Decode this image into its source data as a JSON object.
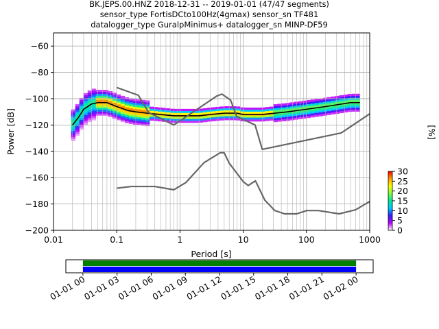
{
  "title_lines": [
    "BK.JEPS.00.HNZ   2018-12-31 -- 2019-01-01  (47/47 segments)",
    "sensor_type FortisDCto100Hz(4gmax) sensor_sn TF481",
    "datalogger_type GuralpMinimus+ datalogger_sn MINP-DF59"
  ],
  "chart_data": [
    {
      "type": "heatmap",
      "xlabel": "Period [s]",
      "ylabel": "Power [dB]",
      "x_scale": "log",
      "xlim": [
        0.01,
        1000
      ],
      "ylim": [
        -200,
        -50
      ],
      "x_ticks": [
        0.01,
        0.1,
        1,
        10,
        100,
        1000
      ],
      "x_tick_labels": [
        "0.01",
        "0.1",
        "1",
        "10",
        "100",
        "1000"
      ],
      "y_ticks": [
        -200,
        -180,
        -160,
        -140,
        -120,
        -100,
        -80,
        -60
      ],
      "y_tick_labels": [
        "−200",
        "−180",
        "−160",
        "−140",
        "−120",
        "−100",
        "−80",
        "−60"
      ],
      "grid": true,
      "colorbar": {
        "label": "[%]",
        "range": [
          0,
          30
        ],
        "ticks": [
          0,
          5,
          10,
          15,
          20,
          25,
          30
        ],
        "tick_labels": [
          "0",
          "5",
          "10",
          "15",
          "20",
          "25",
          "30"
        ],
        "colormap": [
          "#ffffff",
          "#c000ff",
          "#3020ff",
          "#00c8ff",
          "#00e8a0",
          "#80ff40",
          "#ffff00",
          "#ffa000",
          "#ff0000"
        ]
      },
      "colors": {
        "mode_line": "#000000",
        "noise_models": "#666666",
        "axes": "#000000",
        "grid": "#b0b0b0"
      },
      "series": [
        {
          "name": "",
          "role": "mode",
          "x": [
            0.02,
            0.025,
            0.03,
            0.04,
            0.05,
            0.07,
            0.1,
            0.15,
            0.2,
            0.3,
            0.5,
            0.8,
            1,
            2,
            3,
            5,
            8,
            10,
            20,
            50,
            100,
            200,
            500,
            700
          ],
          "y": [
            -120,
            -114,
            -108,
            -104,
            -103,
            -103,
            -106,
            -109,
            -110,
            -111,
            -112,
            -113,
            -113,
            -113,
            -112,
            -111,
            -111,
            -112,
            -112,
            -110,
            -108,
            -106,
            -103,
            -103
          ]
        },
        {
          "name": "",
          "role": "noise-model-high",
          "x": [
            0.1,
            0.22,
            0.32,
            0.8,
            3.8,
            4.6,
            6.3,
            7.9,
            15.4,
            20,
            354.8,
            1000
          ],
          "y": [
            -91.5,
            -97.4,
            -110.5,
            -120,
            -98,
            -96.5,
            -101,
            -113.5,
            -120,
            -138.5,
            -126,
            -111.5
          ]
        },
        {
          "name": "",
          "role": "noise-model-low",
          "x": [
            0.1,
            0.17,
            0.4,
            0.8,
            1.24,
            2.4,
            4.3,
            5,
            6,
            10,
            12,
            15.6,
            21.9,
            31.6,
            45,
            70,
            101,
            154,
            328,
            600,
            1000
          ],
          "y": [
            -168,
            -166.7,
            -166.7,
            -169.2,
            -163.7,
            -148.6,
            -141.1,
            -141.1,
            -149,
            -163,
            -166,
            -162.4,
            -177,
            -185,
            -187.5,
            -187.5,
            -185,
            -185,
            -187.5,
            -184.4,
            -178
          ]
        }
      ]
    },
    {
      "type": "bar",
      "xlabel": "",
      "ylabel": "",
      "x_ticks": [
        "01-01 00",
        "01-01 03",
        "01-01 06",
        "01-01 09",
        "01-01 12",
        "01-01 15",
        "01-01 18",
        "01-01 21",
        "01-02 00"
      ],
      "x_range": [
        "2018-12-31 22:30",
        "2019-01-02 01:30"
      ],
      "bars": [
        {
          "name": "",
          "start": "2019-01-01 00:00",
          "end": "2019-01-02 00:00",
          "color": "#008000"
        },
        {
          "name": "",
          "start": "2019-01-01 00:00",
          "end": "2019-01-02 00:00",
          "color": "#0000ff"
        }
      ]
    }
  ]
}
